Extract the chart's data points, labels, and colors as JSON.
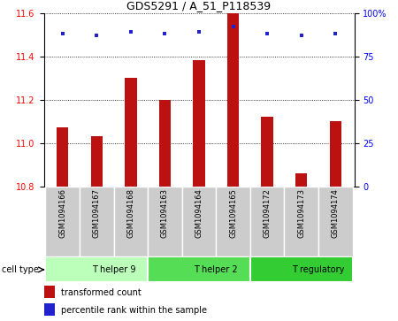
{
  "title": "GDS5291 / A_51_P118539",
  "samples": [
    "GSM1094166",
    "GSM1094167",
    "GSM1094168",
    "GSM1094163",
    "GSM1094164",
    "GSM1094165",
    "GSM1094172",
    "GSM1094173",
    "GSM1094174"
  ],
  "bar_values": [
    11.07,
    11.03,
    11.3,
    11.2,
    11.38,
    11.6,
    11.12,
    10.86,
    11.1
  ],
  "percentile_values": [
    88,
    87,
    89,
    88,
    89,
    92,
    88,
    87,
    88
  ],
  "ylim": [
    10.8,
    11.6
  ],
  "ylim_right": [
    0,
    100
  ],
  "yticks_left": [
    10.8,
    11.0,
    11.2,
    11.4,
    11.6
  ],
  "yticks_right": [
    0,
    25,
    50,
    75,
    100
  ],
  "bar_color": "#bb1111",
  "dot_color": "#2222cc",
  "bg_color": "#ffffff",
  "cell_types": [
    {
      "label": "T helper 9",
      "start": 0,
      "end": 3,
      "color": "#bbffbb"
    },
    {
      "label": "T helper 2",
      "start": 3,
      "end": 6,
      "color": "#55dd55"
    },
    {
      "label": "T regulatory",
      "start": 6,
      "end": 9,
      "color": "#33cc33"
    }
  ],
  "legend_bar_label": "transformed count",
  "legend_dot_label": "percentile rank within the sample",
  "cell_type_label": "cell type",
  "sample_box_color": "#cccccc",
  "bar_width": 0.35,
  "title_fontsize": 9,
  "tick_fontsize": 7,
  "label_fontsize": 6,
  "cell_fontsize": 7,
  "legend_fontsize": 7
}
